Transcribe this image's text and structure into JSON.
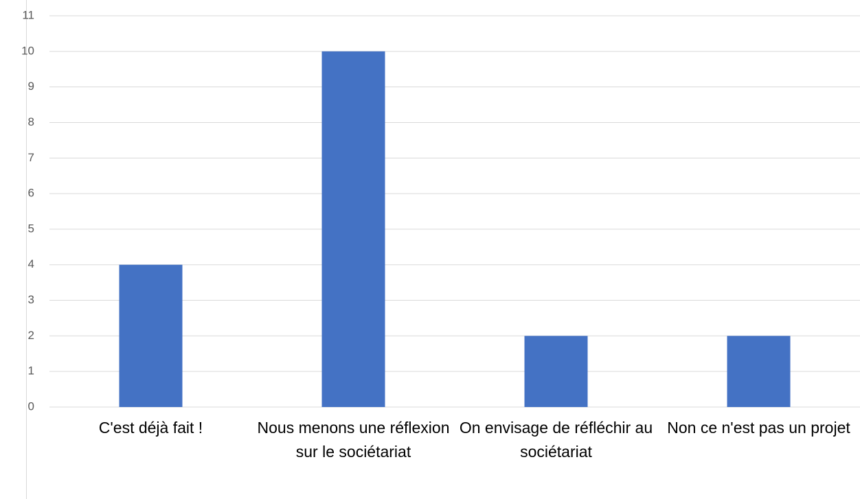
{
  "chart_data": {
    "type": "bar",
    "categories": [
      "C'est déjà fait !",
      "Nous menons une réflexion sur le sociétariat",
      "On envisage de réfléchir au sociétariat",
      "Non ce n'est pas un projet"
    ],
    "values": [
      4,
      10,
      2,
      2
    ],
    "color": "#4472c4",
    "ylim": [
      0,
      11
    ],
    "yticks": [
      0,
      1,
      2,
      3,
      4,
      5,
      6,
      7,
      8,
      9,
      10,
      11
    ],
    "grid": true
  }
}
